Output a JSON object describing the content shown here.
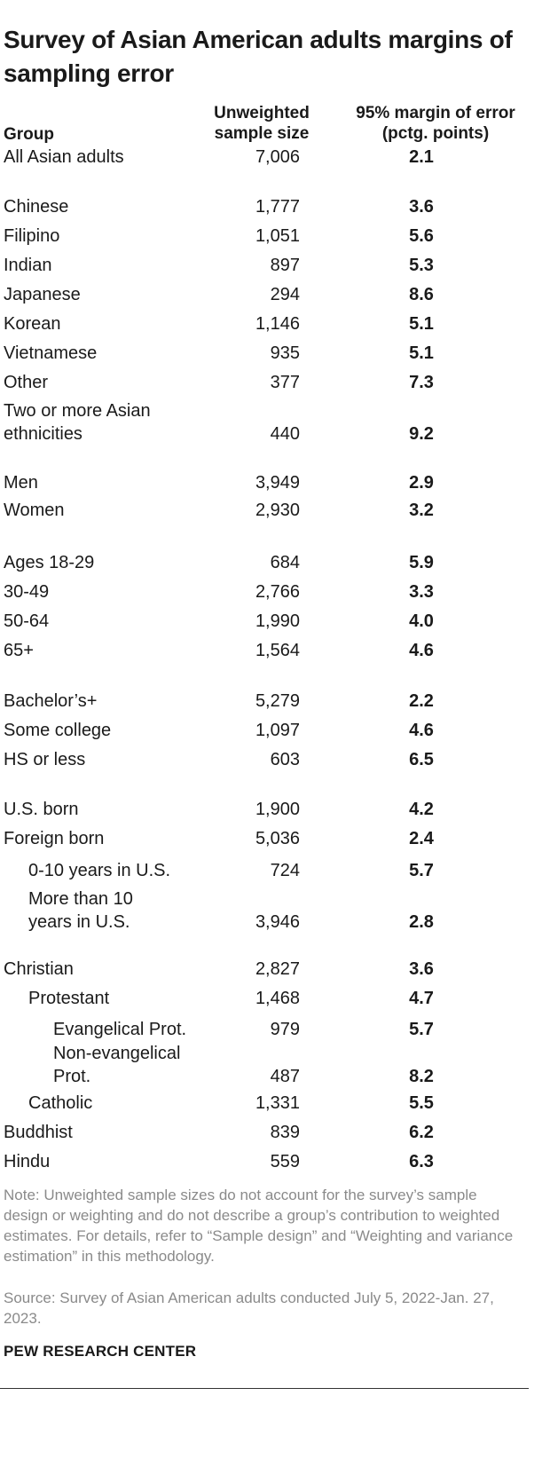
{
  "title": "Survey of Asian American adults margins of sampling error",
  "headers": {
    "group": "Group",
    "sample_size": "Unweighted\nsample size",
    "moe": "95% margin of error\n(pctg. points)"
  },
  "rows": [
    {
      "label": "All Asian adults",
      "n": "7,006",
      "moe": "2.1"
    },
    {
      "label": "Chinese",
      "n": "1,777",
      "moe": "3.6"
    },
    {
      "label": "Filipino",
      "n": "1,051",
      "moe": "5.6"
    },
    {
      "label": "Indian",
      "n": "897",
      "moe": "5.3"
    },
    {
      "label": "Japanese",
      "n": "294",
      "moe": "8.6"
    },
    {
      "label": "Korean",
      "n": "1,146",
      "moe": "5.1"
    },
    {
      "label": "Vietnamese",
      "n": "935",
      "moe": "5.1"
    },
    {
      "label": "Other",
      "n": "377",
      "moe": "7.3"
    },
    {
      "label": "Two or more Asian\nethnicities",
      "n": "440",
      "moe": "9.2"
    },
    {
      "label": "Men",
      "n": "3,949",
      "moe": "2.9"
    },
    {
      "label": "Women",
      "n": "2,930",
      "moe": "3.2"
    },
    {
      "label": "Ages 18-29",
      "n": "684",
      "moe": "5.9"
    },
    {
      "label": "30-49",
      "n": "2,766",
      "moe": "3.3"
    },
    {
      "label": "50-64",
      "n": "1,990",
      "moe": "4.0"
    },
    {
      "label": "65+",
      "n": "1,564",
      "moe": "4.6"
    },
    {
      "label": "Bachelor’s+",
      "n": "5,279",
      "moe": "2.2"
    },
    {
      "label": "Some college",
      "n": "1,097",
      "moe": "4.6"
    },
    {
      "label": "HS or less",
      "n": "603",
      "moe": "6.5"
    },
    {
      "label": "U.S. born",
      "n": "1,900",
      "moe": "4.2"
    },
    {
      "label": "Foreign born",
      "n": "5,036",
      "moe": "2.4"
    },
    {
      "label": "0-10 years in U.S.",
      "n": "724",
      "moe": "5.7"
    },
    {
      "label": "More than 10\nyears in U.S.",
      "n": "3,946",
      "moe": "2.8"
    },
    {
      "label": "Christian",
      "n": "2,827",
      "moe": "3.6"
    },
    {
      "label": "Protestant",
      "n": "1,468",
      "moe": "4.7"
    },
    {
      "label": "Evangelical Prot.",
      "n": "979",
      "moe": "5.7"
    },
    {
      "label": "Non-evangelical\nProt.",
      "n": "487",
      "moe": "8.2"
    },
    {
      "label": "Catholic",
      "n": "1,331",
      "moe": "5.5"
    },
    {
      "label": "Buddhist",
      "n": "839",
      "moe": "6.2"
    },
    {
      "label": "Hindu",
      "n": "559",
      "moe": "6.3"
    }
  ],
  "note": "Note: Unweighted sample sizes do not account for the survey’s sample design or weighting and do not describe a group’s contribution to weighted estimates. For details, refer to “Sample design” and “Weighting and variance estimation” in this methodology.",
  "source": "Source: Survey of Asian American adults conducted July 5, 2022-Jan. 27, 2023.",
  "brand": "PEW RESEARCH CENTER"
}
